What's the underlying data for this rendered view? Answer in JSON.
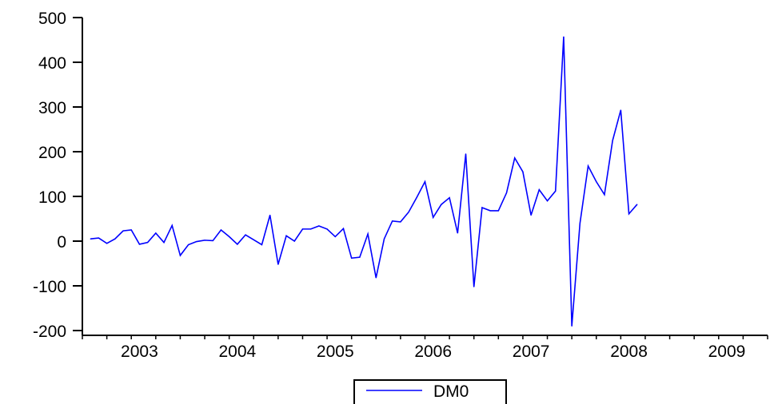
{
  "chart_data": {
    "type": "line",
    "title": "",
    "xlabel": "",
    "ylabel": "",
    "ylim": [
      -200,
      500
    ],
    "yticks": [
      -200,
      -100,
      0,
      100,
      200,
      300,
      400,
      500
    ],
    "ytick_labels": [
      "-200",
      "-100",
      "0",
      "100",
      "200",
      "300",
      "400",
      "500"
    ],
    "x_range": [
      "2002-12",
      "2009-12"
    ],
    "xtick_labels": [
      "2003",
      "2004",
      "2005",
      "2006",
      "2007",
      "2008",
      "2009"
    ],
    "frequency": "monthly",
    "start": "2003-01",
    "grid": false,
    "legend_position": "bottom-center",
    "series": [
      {
        "name": "DM0",
        "color": "#0000ff",
        "values": [
          5,
          7,
          -5,
          5,
          23,
          25,
          -7,
          -3,
          18,
          -3,
          35,
          -32,
          -8,
          -1,
          2,
          1,
          25,
          10,
          -7,
          14,
          3,
          -8,
          58,
          -52,
          12,
          0,
          27,
          27,
          34,
          27,
          10,
          28,
          -38,
          -36,
          16,
          -82,
          5,
          45,
          43,
          65,
          98,
          133,
          53,
          82,
          97,
          18,
          195,
          -102,
          75,
          68,
          68,
          108,
          186,
          155,
          58,
          115,
          90,
          112,
          457,
          -190,
          40,
          168,
          133,
          104,
          225,
          293,
          61,
          82
        ]
      }
    ]
  }
}
